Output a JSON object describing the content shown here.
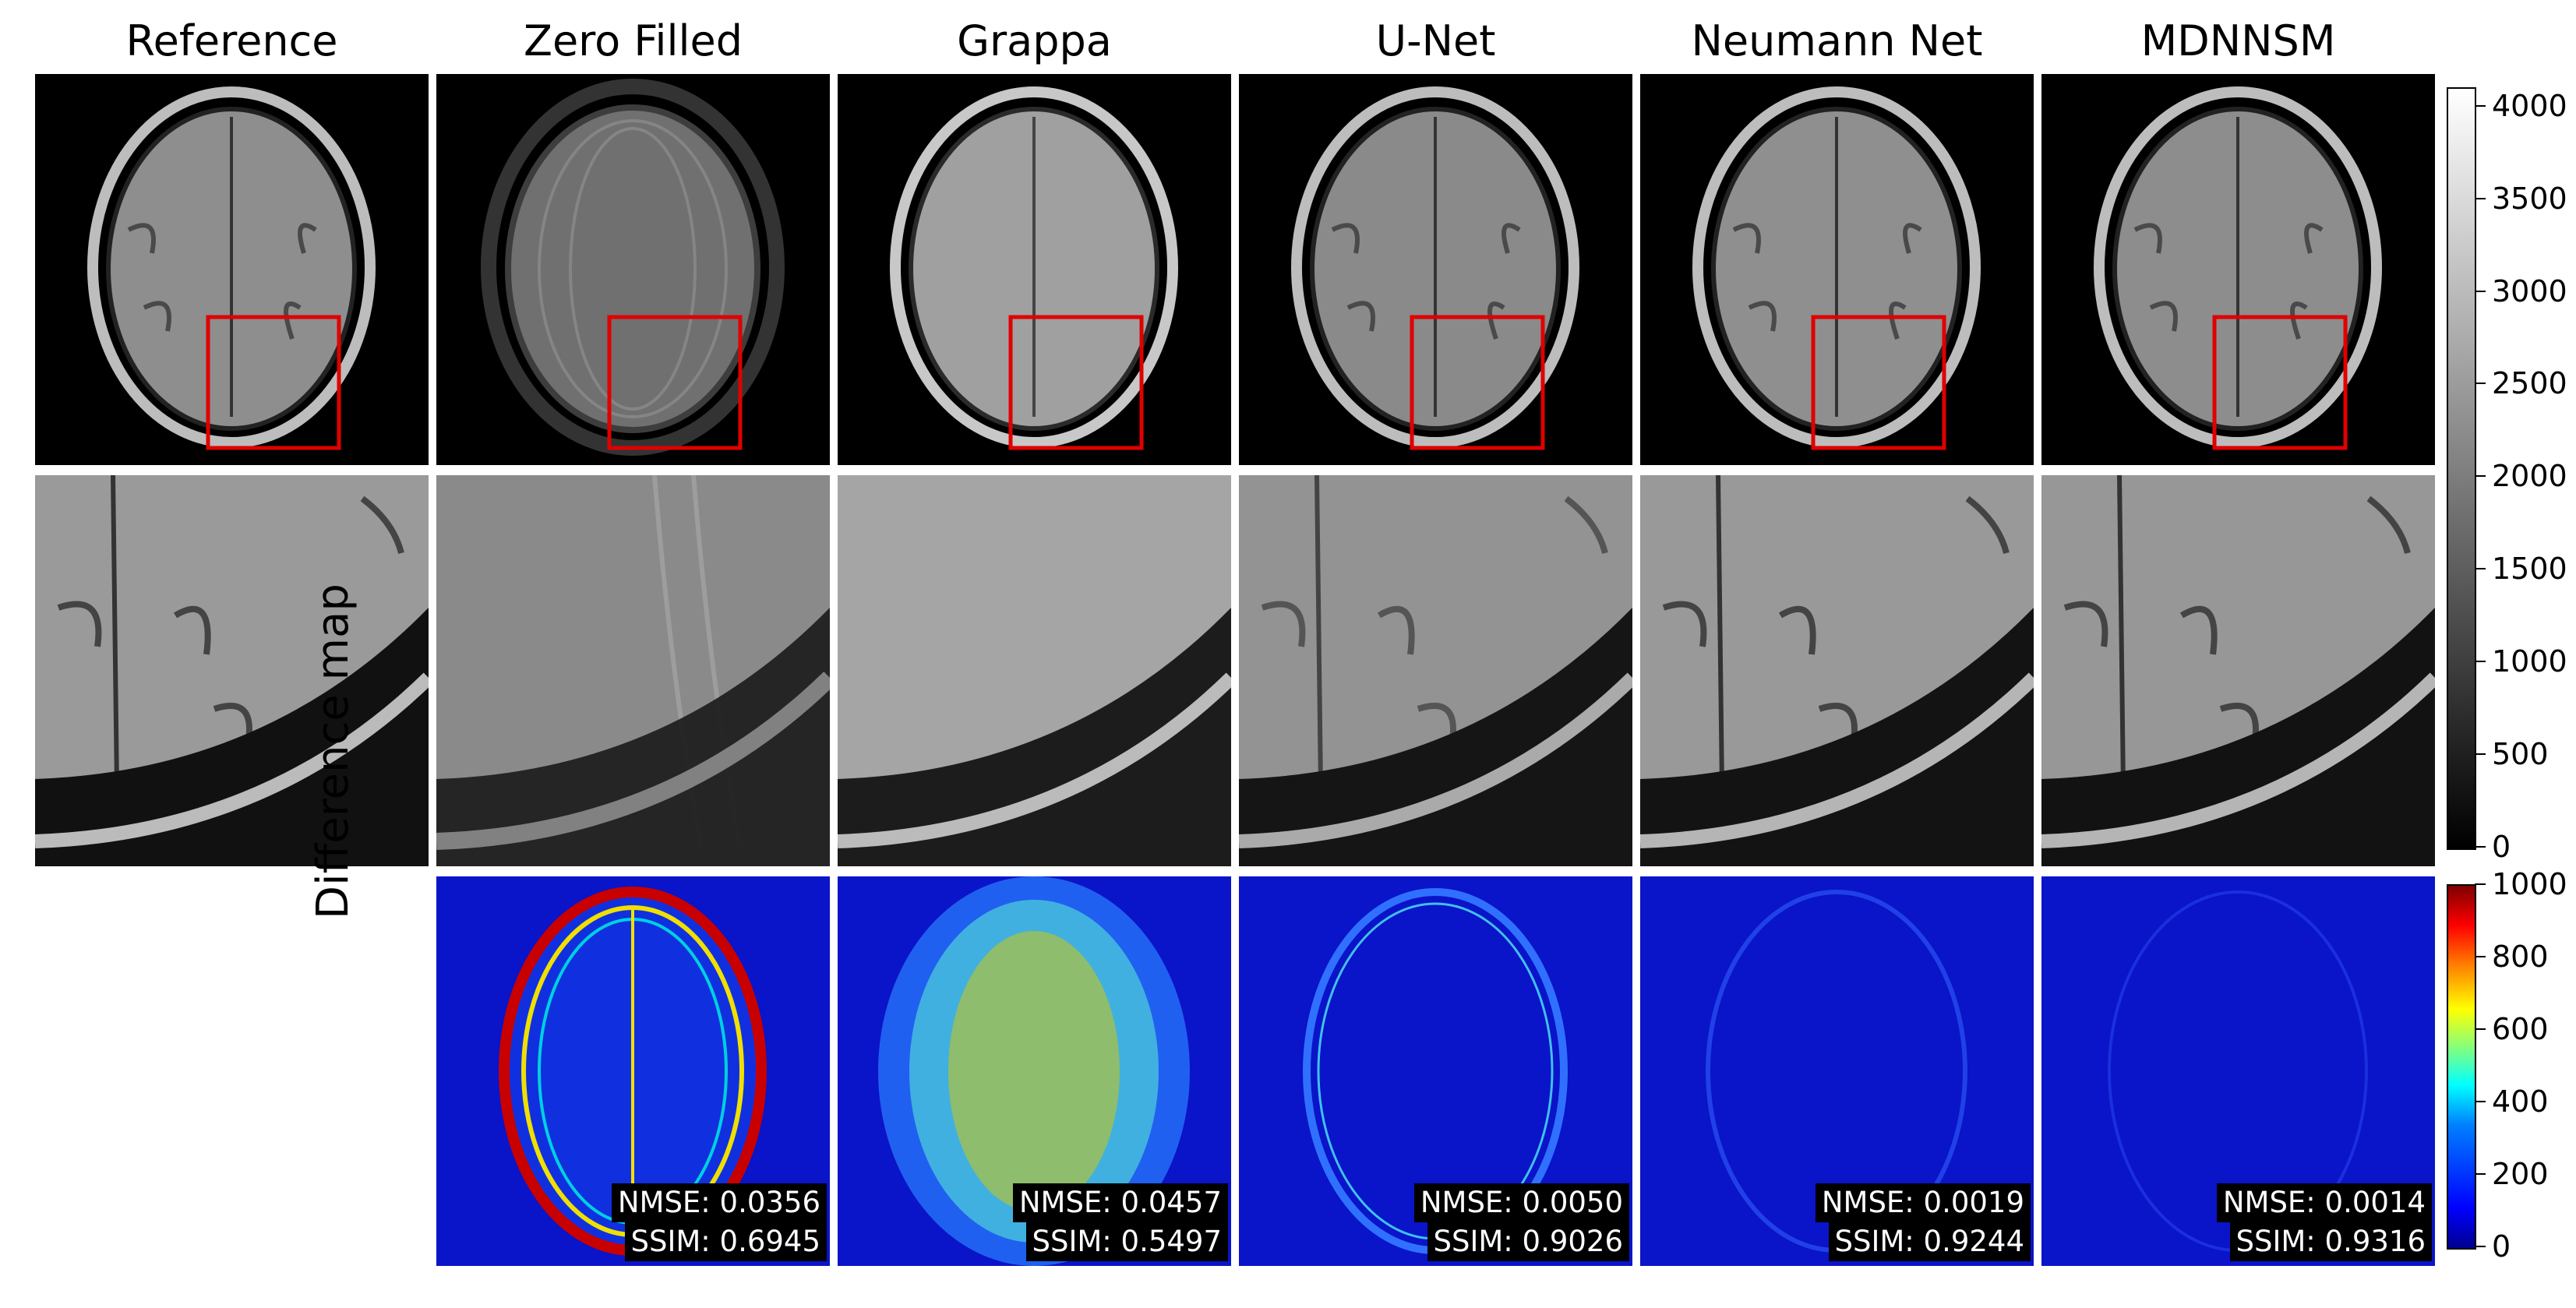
{
  "columns": [
    {
      "title": "Reference"
    },
    {
      "title": "Zero Filled"
    },
    {
      "title": "Grappa"
    },
    {
      "title": "U-Net"
    },
    {
      "title": "Neumann Net"
    },
    {
      "title": "MDNNSM"
    }
  ],
  "difference_row_label": "Difference map",
  "metrics": [
    {
      "nmse": "NMSE: 0.0356",
      "ssim": "SSIM: 0.6945"
    },
    {
      "nmse": "NMSE: 0.0457",
      "ssim": "SSIM: 0.5497"
    },
    {
      "nmse": "NMSE: 0.0050",
      "ssim": "SSIM: 0.9026"
    },
    {
      "nmse": "NMSE: 0.0019",
      "ssim": "SSIM: 0.9244"
    },
    {
      "nmse": "NMSE: 0.0014",
      "ssim": "SSIM: 0.9316"
    }
  ],
  "grayscale_colorbar": {
    "ticks": [
      "0",
      "500",
      "1000",
      "1500",
      "2000",
      "2500",
      "3000",
      "3500",
      "4000"
    ],
    "range": [
      0,
      4100
    ]
  },
  "difference_colorbar": {
    "ticks": [
      "0",
      "200",
      "400",
      "600",
      "800",
      "1000"
    ],
    "range": [
      0,
      1000
    ]
  },
  "colors": {
    "zoom_box": "#e00000",
    "diff_background": "#0a14c8"
  }
}
